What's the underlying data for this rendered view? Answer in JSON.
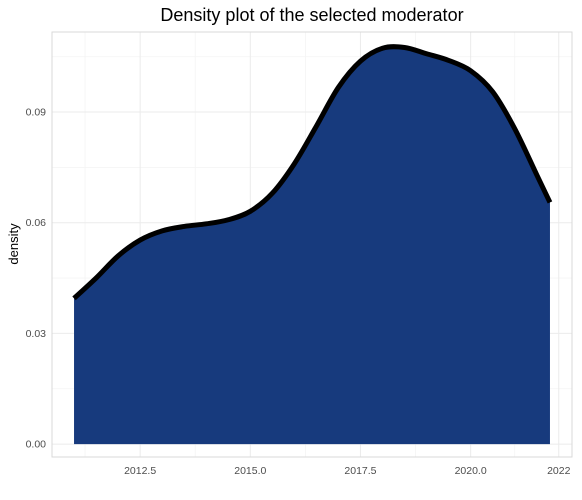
{
  "chart_data": {
    "type": "area",
    "title": "Density plot of the selected moderator",
    "xlabel": "",
    "ylabel": "density",
    "xlim": [
      2010.5,
      2022.3
    ],
    "ylim": [
      -0.0035,
      0.1117
    ],
    "x_ticks": [
      2012.5,
      2015.0,
      2017.5,
      2020.0,
      2022
    ],
    "x_tick_labels": [
      "2012.5",
      "2015.0",
      "2017.5",
      "2020.0",
      "2022"
    ],
    "y_ticks": [
      0.0,
      0.03,
      0.06,
      0.09
    ],
    "y_tick_labels": [
      "0.00",
      "0.03",
      "0.06",
      "0.09"
    ],
    "grid": true,
    "legend": "none",
    "fill_color": "#173a7d",
    "line_color": "#000000",
    "series": [
      {
        "x": [
          2011.0,
          2011.5,
          2012.0,
          2012.5,
          2013.0,
          2013.5,
          2014.0,
          2014.5,
          2015.0,
          2015.5,
          2016.0,
          2016.5,
          2017.0,
          2017.5,
          2018.0,
          2018.5,
          2019.0,
          2019.5,
          2020.0,
          2020.5,
          2021.0,
          2021.5,
          2021.8
        ],
        "y": [
          0.0395,
          0.045,
          0.051,
          0.0553,
          0.0578,
          0.059,
          0.0597,
          0.0608,
          0.0631,
          0.068,
          0.076,
          0.0862,
          0.0967,
          0.1038,
          0.1073,
          0.1075,
          0.1058,
          0.104,
          0.1012,
          0.0955,
          0.0855,
          0.073,
          0.0655
        ]
      }
    ]
  }
}
